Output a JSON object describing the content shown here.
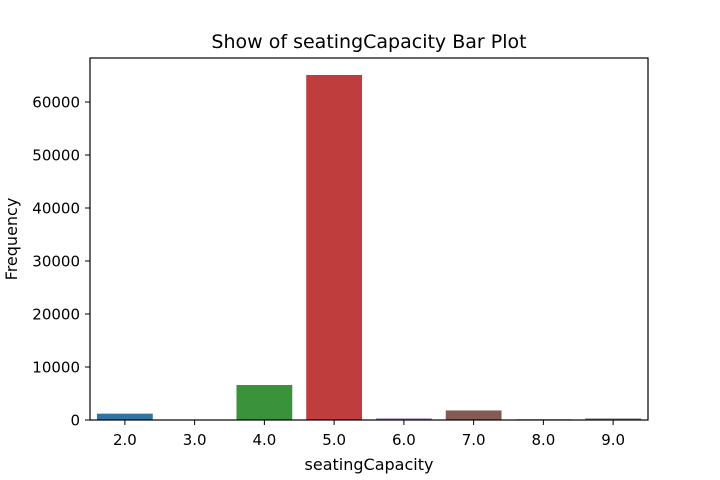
{
  "chart_data": {
    "type": "bar",
    "title": "Show of seatingCapacity Bar Plot",
    "xlabel": "seatingCapacity",
    "ylabel": "Frequency",
    "categories": [
      "2.0",
      "3.0",
      "4.0",
      "5.0",
      "6.0",
      "7.0",
      "8.0",
      "9.0"
    ],
    "values": [
      1200,
      30,
      6600,
      65100,
      300,
      1800,
      150,
      300
    ],
    "colors": [
      "#3274a1",
      "#e1812c",
      "#3a923a",
      "#c03d3e",
      "#9372b2",
      "#845b53",
      "#d684bd",
      "#7f7f7f"
    ],
    "ylim": [
      0,
      68300
    ],
    "yticks": [
      0,
      10000,
      20000,
      30000,
      40000,
      50000,
      60000
    ],
    "ytick_labels": [
      "0",
      "10000",
      "20000",
      "30000",
      "40000",
      "50000",
      "60000"
    ],
    "grid": false,
    "legend": "none"
  }
}
